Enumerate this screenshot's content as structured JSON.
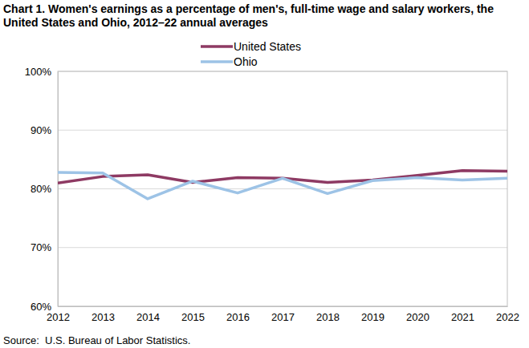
{
  "chart_data": {
    "type": "line",
    "title": "Chart 1. Women's earnings as a percentage of men's, full-time wage and salary workers, the United States and Ohio, 2012–22 annual averages",
    "source": "Source:  U.S. Bureau of Labor Statistics.",
    "x": [
      2012,
      2013,
      2014,
      2015,
      2016,
      2017,
      2018,
      2019,
      2020,
      2021,
      2022
    ],
    "series": [
      {
        "name": "United States",
        "color": "#8e3a63",
        "values": [
          81.0,
          82.1,
          82.4,
          81.1,
          81.9,
          81.8,
          81.1,
          81.5,
          82.3,
          83.1,
          83.0
        ]
      },
      {
        "name": "Ohio",
        "color": "#9dc3e6",
        "values": [
          82.8,
          82.7,
          78.3,
          81.3,
          79.3,
          81.8,
          79.2,
          81.4,
          81.9,
          81.5,
          81.8
        ]
      }
    ],
    "xlim": [
      2012,
      2022
    ],
    "xticks": [
      2012,
      2013,
      2014,
      2015,
      2016,
      2017,
      2018,
      2019,
      2020,
      2021,
      2022
    ],
    "ylim": [
      60,
      100
    ],
    "yticks": [
      {
        "value": 60,
        "label": "60%"
      },
      {
        "value": 70,
        "label": "70%"
      },
      {
        "value": 80,
        "label": "80%"
      },
      {
        "value": 90,
        "label": "90%"
      },
      {
        "value": 100,
        "label": "100%"
      }
    ],
    "grid": true,
    "legend": "top"
  }
}
